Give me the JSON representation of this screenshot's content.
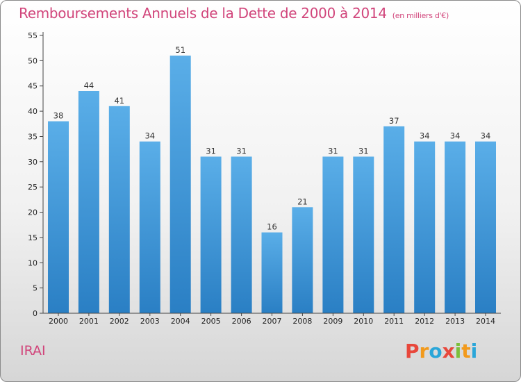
{
  "header": {
    "title": "Remboursements Annuels de la Dette de 2000 à 2014",
    "unit": "(en milliers d'€)"
  },
  "footer": {
    "commune": "IRAI",
    "logo_letters": [
      {
        "char": "P",
        "color": "#e8473b"
      },
      {
        "char": "r",
        "color": "#f29a1c"
      },
      {
        "char": "o",
        "color": "#2aa6d9"
      },
      {
        "char": "x",
        "color": "#e8473b"
      },
      {
        "char": "i",
        "color": "#7cbf3a"
      },
      {
        "char": "t",
        "color": "#f29a1c"
      },
      {
        "char": "i",
        "color": "#2aa6d9"
      }
    ]
  },
  "chart_data": {
    "type": "bar",
    "title": "Remboursements Annuels de la Dette de 2000 à 2014",
    "subtitle": "(en milliers d'€)",
    "categories": [
      "2000",
      "2001",
      "2002",
      "2003",
      "2004",
      "2005",
      "2006",
      "2007",
      "2008",
      "2009",
      "2010",
      "2011",
      "2012",
      "2013",
      "2014"
    ],
    "values": [
      38,
      44,
      41,
      34,
      51,
      31,
      31,
      16,
      21,
      31,
      31,
      37,
      34,
      34,
      34
    ],
    "ylim": [
      0,
      55
    ],
    "yticks": [
      0,
      5,
      10,
      15,
      20,
      25,
      30,
      35,
      40,
      45,
      50,
      55
    ],
    "grid": false,
    "bar_color_top": "#5aaee8",
    "bar_color_bottom": "#2a7fc4"
  }
}
